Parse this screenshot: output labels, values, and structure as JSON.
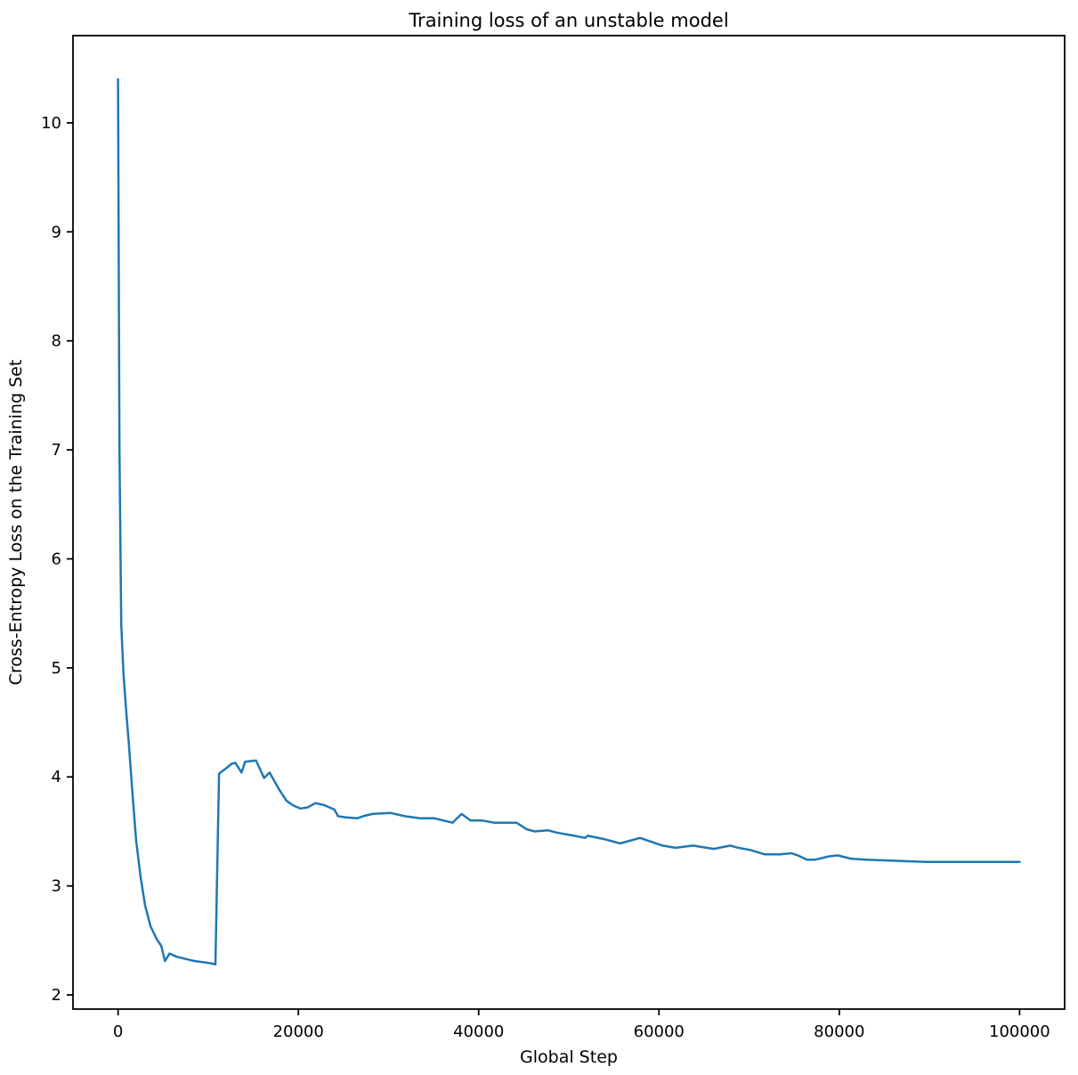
{
  "plot": {
    "background": "#ffffff",
    "spine_color": "#000000",
    "text_color": "#000000"
  },
  "chart_data": {
    "type": "line",
    "title": "Training loss of an unstable model",
    "xlabel": "Global Step",
    "ylabel": "Cross-Entropy Loss on the Training Set",
    "xlim": [
      -5000,
      105000
    ],
    "ylim": [
      1.87,
      10.8
    ],
    "xticks": [
      0,
      20000,
      40000,
      60000,
      80000,
      100000
    ],
    "yticks": [
      2,
      3,
      4,
      5,
      6,
      7,
      8,
      9,
      10
    ],
    "grid": false,
    "legend": "none",
    "line_color": "#1f77b4",
    "line_width": 2.5,
    "series": [
      {
        "name": "cross-entropy training loss",
        "points": [
          [
            0,
            10.4
          ],
          [
            150,
            7.0
          ],
          [
            350,
            5.4
          ],
          [
            600,
            4.95
          ],
          [
            900,
            4.6
          ],
          [
            1200,
            4.3
          ],
          [
            1600,
            3.85
          ],
          [
            2000,
            3.42
          ],
          [
            2500,
            3.08
          ],
          [
            3000,
            2.82
          ],
          [
            3600,
            2.63
          ],
          [
            4300,
            2.51
          ],
          [
            4800,
            2.45
          ],
          [
            5200,
            2.31
          ],
          [
            5700,
            2.38
          ],
          [
            6500,
            2.35
          ],
          [
            7500,
            2.33
          ],
          [
            8500,
            2.31
          ],
          [
            9500,
            2.3
          ],
          [
            10300,
            2.29
          ],
          [
            10800,
            2.28
          ],
          [
            11200,
            4.03
          ],
          [
            12000,
            4.08
          ],
          [
            12600,
            4.12
          ],
          [
            13000,
            4.13
          ],
          [
            13700,
            4.04
          ],
          [
            14100,
            4.14
          ],
          [
            15300,
            4.15
          ],
          [
            16200,
            3.99
          ],
          [
            16800,
            4.04
          ],
          [
            17900,
            3.88
          ],
          [
            18700,
            3.78
          ],
          [
            19400,
            3.74
          ],
          [
            20200,
            3.71
          ],
          [
            21000,
            3.72
          ],
          [
            21900,
            3.76
          ],
          [
            22900,
            3.74
          ],
          [
            24000,
            3.7
          ],
          [
            24400,
            3.64
          ],
          [
            25200,
            3.63
          ],
          [
            26500,
            3.62
          ],
          [
            27200,
            3.64
          ],
          [
            28200,
            3.66
          ],
          [
            30200,
            3.67
          ],
          [
            31800,
            3.64
          ],
          [
            33500,
            3.62
          ],
          [
            35100,
            3.62
          ],
          [
            36100,
            3.6
          ],
          [
            37100,
            3.58
          ],
          [
            38100,
            3.66
          ],
          [
            39100,
            3.6
          ],
          [
            40400,
            3.6
          ],
          [
            41700,
            3.58
          ],
          [
            43000,
            3.58
          ],
          [
            44200,
            3.58
          ],
          [
            45300,
            3.52
          ],
          [
            46200,
            3.5
          ],
          [
            47700,
            3.51
          ],
          [
            48600,
            3.49
          ],
          [
            50600,
            3.46
          ],
          [
            51800,
            3.44
          ],
          [
            52100,
            3.46
          ],
          [
            53900,
            3.43
          ],
          [
            55700,
            3.39
          ],
          [
            57900,
            3.44
          ],
          [
            60400,
            3.37
          ],
          [
            61800,
            3.35
          ],
          [
            63800,
            3.37
          ],
          [
            64500,
            3.36
          ],
          [
            66100,
            3.34
          ],
          [
            67900,
            3.37
          ],
          [
            68800,
            3.35
          ],
          [
            70100,
            3.33
          ],
          [
            71700,
            3.29
          ],
          [
            73400,
            3.29
          ],
          [
            74700,
            3.3
          ],
          [
            75400,
            3.28
          ],
          [
            76400,
            3.24
          ],
          [
            77300,
            3.24
          ],
          [
            78800,
            3.27
          ],
          [
            79800,
            3.28
          ],
          [
            81300,
            3.25
          ],
          [
            83000,
            3.24
          ],
          [
            86300,
            3.23
          ],
          [
            89600,
            3.22
          ],
          [
            92900,
            3.22
          ],
          [
            96200,
            3.22
          ],
          [
            100000,
            3.22
          ]
        ]
      }
    ]
  }
}
